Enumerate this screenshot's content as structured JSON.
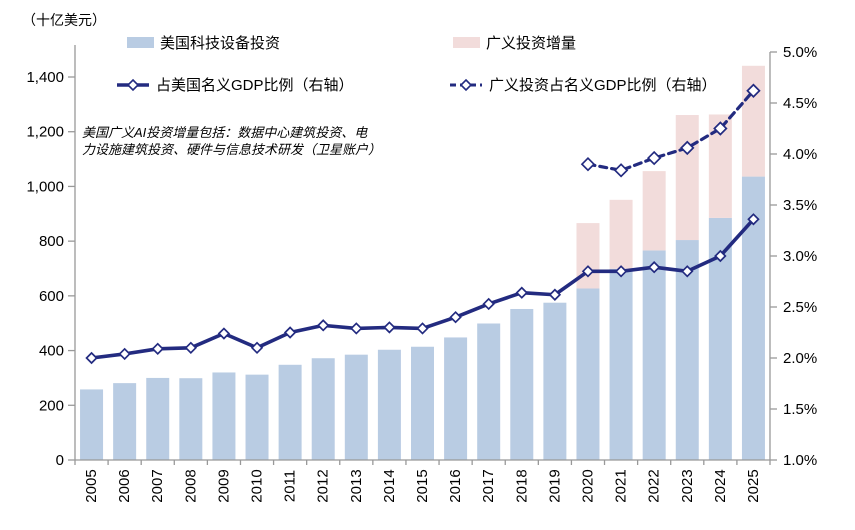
{
  "unit_label": "（十亿美元）",
  "legend": {
    "bar1": "美国科技设备投资",
    "bar2": "广义投资增量",
    "line1": "占美国名义GDP比例（右轴）",
    "line2": "广义投资占名义GDP比例（右轴）"
  },
  "annotation": "美国广义AI投资增量包括：数据中心建筑投资、电\n力设施建筑投资、硬件与信息技术研发（卫星账户）",
  "colors": {
    "bar_blue": "#B9CCE3",
    "bar_pink": "#F2DCDB",
    "line_navy": "#232B80",
    "axis_gray": "#999999",
    "text": "#000000"
  },
  "chart_data": {
    "type": "bar",
    "subtype": "stacked bars with two percentage lines on secondary axis",
    "categories": [
      "2005",
      "2006",
      "2007",
      "2008",
      "2009",
      "2010",
      "2011",
      "2012",
      "2013",
      "2014",
      "2015",
      "2016",
      "2017",
      "2018",
      "2019",
      "2020",
      "2021",
      "2022",
      "2023",
      "2024",
      "2025"
    ],
    "series": [
      {
        "name": "美国科技设备投资",
        "type": "bar",
        "axis": "left",
        "color": "#B9CCE3",
        "values": [
          258,
          281,
          300,
          299,
          320,
          312,
          348,
          372,
          385,
          403,
          414,
          448,
          499,
          552,
          575,
          627,
          699,
          766,
          804,
          885,
          1036
        ]
      },
      {
        "name": "广义投资增量",
        "type": "bar",
        "stacked_on": "美国科技设备投资",
        "axis": "left",
        "color": "#F2DCDB",
        "values": [
          null,
          null,
          null,
          null,
          null,
          null,
          null,
          null,
          null,
          null,
          null,
          null,
          null,
          null,
          null,
          239,
          252,
          290,
          457,
          378,
          405
        ]
      },
      {
        "name": "占美国名义GDP比例（右轴）",
        "type": "line",
        "style": "solid",
        "axis": "right",
        "color": "#232B80",
        "values": [
          2.0,
          2.04,
          2.09,
          2.1,
          2.24,
          2.1,
          2.25,
          2.32,
          2.29,
          2.3,
          2.29,
          2.4,
          2.53,
          2.64,
          2.62,
          2.85,
          2.85,
          2.89,
          2.85,
          3.0,
          3.36
        ]
      },
      {
        "name": "广义投资占名义GDP比例（右轴）",
        "type": "line",
        "style": "dashed",
        "axis": "right",
        "color": "#232B80",
        "values": [
          null,
          null,
          null,
          null,
          null,
          null,
          null,
          null,
          null,
          null,
          null,
          null,
          null,
          null,
          null,
          3.9,
          3.84,
          3.96,
          4.06,
          4.25,
          4.62
        ]
      }
    ],
    "left_axis": {
      "title": "（十亿美元）",
      "min": 0,
      "max": 1400,
      "tick_step": 200,
      "tick_labels": [
        "0",
        "200",
        "400",
        "600",
        "800",
        "1,000",
        "1,200",
        "1,400"
      ]
    },
    "right_axis": {
      "min": 1.0,
      "max": 5.0,
      "tick_step": 0.5,
      "tick_labels": [
        "1.0%",
        "1.5%",
        "2.0%",
        "2.5%",
        "3.0%",
        "3.5%",
        "4.0%",
        "4.5%",
        "5.0%"
      ]
    },
    "grid": false,
    "legend_position": "top"
  }
}
